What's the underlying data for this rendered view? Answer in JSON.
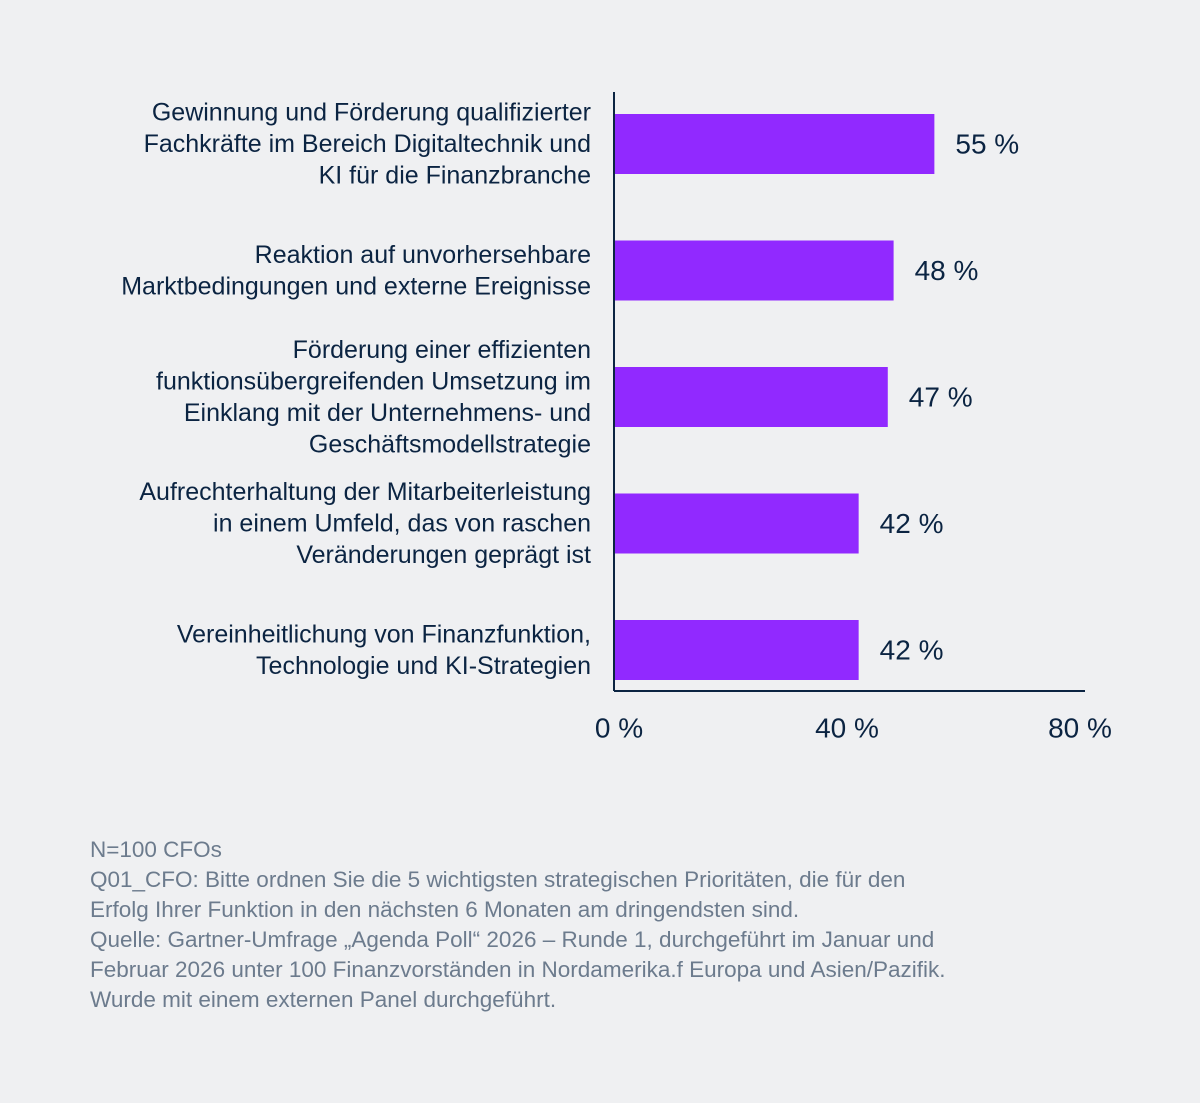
{
  "chart_data": {
    "type": "bar",
    "orientation": "horizontal",
    "categories": [
      [
        "Gewinnung und Förderung qualifizierter",
        "Fachkräfte im Bereich Digitaltechnik und",
        "KI für die Finanzbranche"
      ],
      [
        "Reaktion auf unvorhersehbare",
        "Marktbedingungen und externe Ereignisse"
      ],
      [
        "Förderung einer effizienten",
        "funktionsübergreifenden Umsetzung im",
        "Einklang mit der Unternehmens- und",
        "Geschäftsmodellstrategie"
      ],
      [
        "Aufrechterhaltung der Mitarbeiterleistung",
        "in einem Umfeld, das von raschen",
        "Veränderungen geprägt ist"
      ],
      [
        "Vereinheitlichung von Finanzfunktion,",
        "Technologie und KI-Strategien"
      ]
    ],
    "values": [
      55,
      48,
      47,
      42,
      42
    ],
    "value_labels": [
      "55 %",
      "48 %",
      "47 %",
      "42 %",
      "42 %"
    ],
    "xlim": [
      0,
      80
    ],
    "xticks": [
      0,
      40,
      80
    ],
    "xtick_labels": [
      "0 %",
      "40 %",
      "80 %"
    ],
    "grid": false,
    "bar_color": "#9129ff",
    "text_color": "#0b2442",
    "background": "#eff0f2"
  },
  "footnote": {
    "lines": [
      "N=100 CFOs",
      "Q01_CFO: Bitte ordnen Sie die 5 wichtigsten strategischen Prioritäten, die für den",
      "Erfolg Ihrer Funktion in den nächsten 6 Monaten am dringendsten sind.",
      "Quelle: Gartner-Umfrage „Agenda Poll“ 2026 – Runde 1, durchgeführt im Januar und",
      "Februar 2026 unter 100 Finanzvorständen in Nordamerika.f Europa und Asien/Pazifik.",
      "Wurde mit einem externen Panel durchgeführt."
    ],
    "color": "#6c7b8d"
  }
}
